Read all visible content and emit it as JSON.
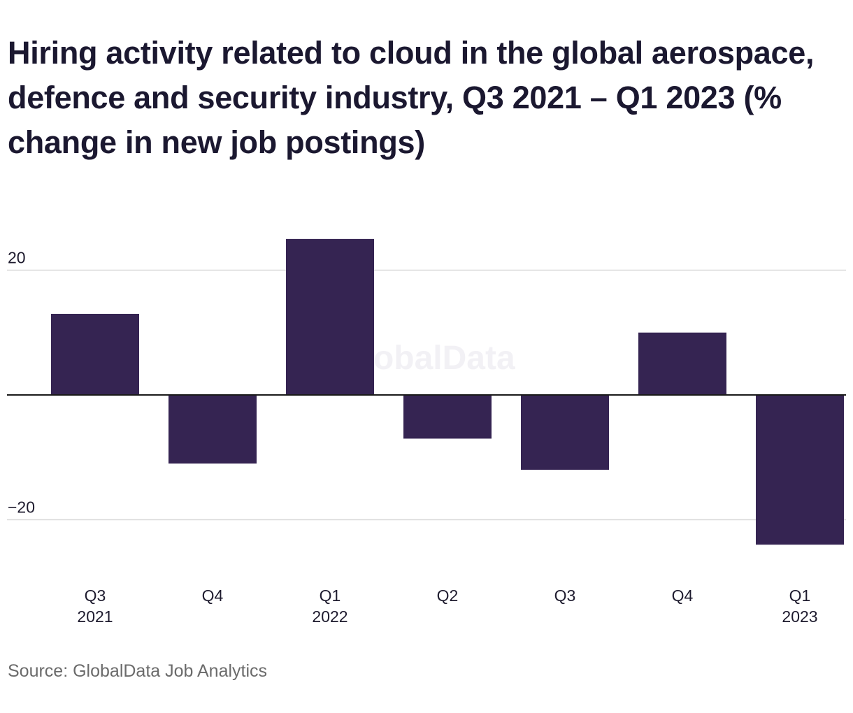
{
  "chart_data": {
    "type": "bar",
    "title": "Hiring activity related to cloud in the global aerospace, defence and security industry, Q3 2021 – Q1 2023 (% change in new job postings)",
    "categories": [
      {
        "quarter": "Q3",
        "year": "2021"
      },
      {
        "quarter": "Q4",
        "year": ""
      },
      {
        "quarter": "Q1",
        "year": "2022"
      },
      {
        "quarter": "Q2",
        "year": ""
      },
      {
        "quarter": "Q3",
        "year": ""
      },
      {
        "quarter": "Q4",
        "year": ""
      },
      {
        "quarter": "Q1",
        "year": "2023"
      }
    ],
    "values": [
      13,
      -11,
      25,
      -7,
      -12,
      10,
      -24
    ],
    "y_ticks": [
      {
        "value": 20,
        "label": "20"
      },
      {
        "value": -20,
        "label": "−20"
      }
    ],
    "ylim": [
      -24,
      25
    ],
    "grid": true,
    "bar_color": "#352452",
    "watermark": "GlobalData",
    "source": "Source: GlobalData Job Analytics"
  }
}
